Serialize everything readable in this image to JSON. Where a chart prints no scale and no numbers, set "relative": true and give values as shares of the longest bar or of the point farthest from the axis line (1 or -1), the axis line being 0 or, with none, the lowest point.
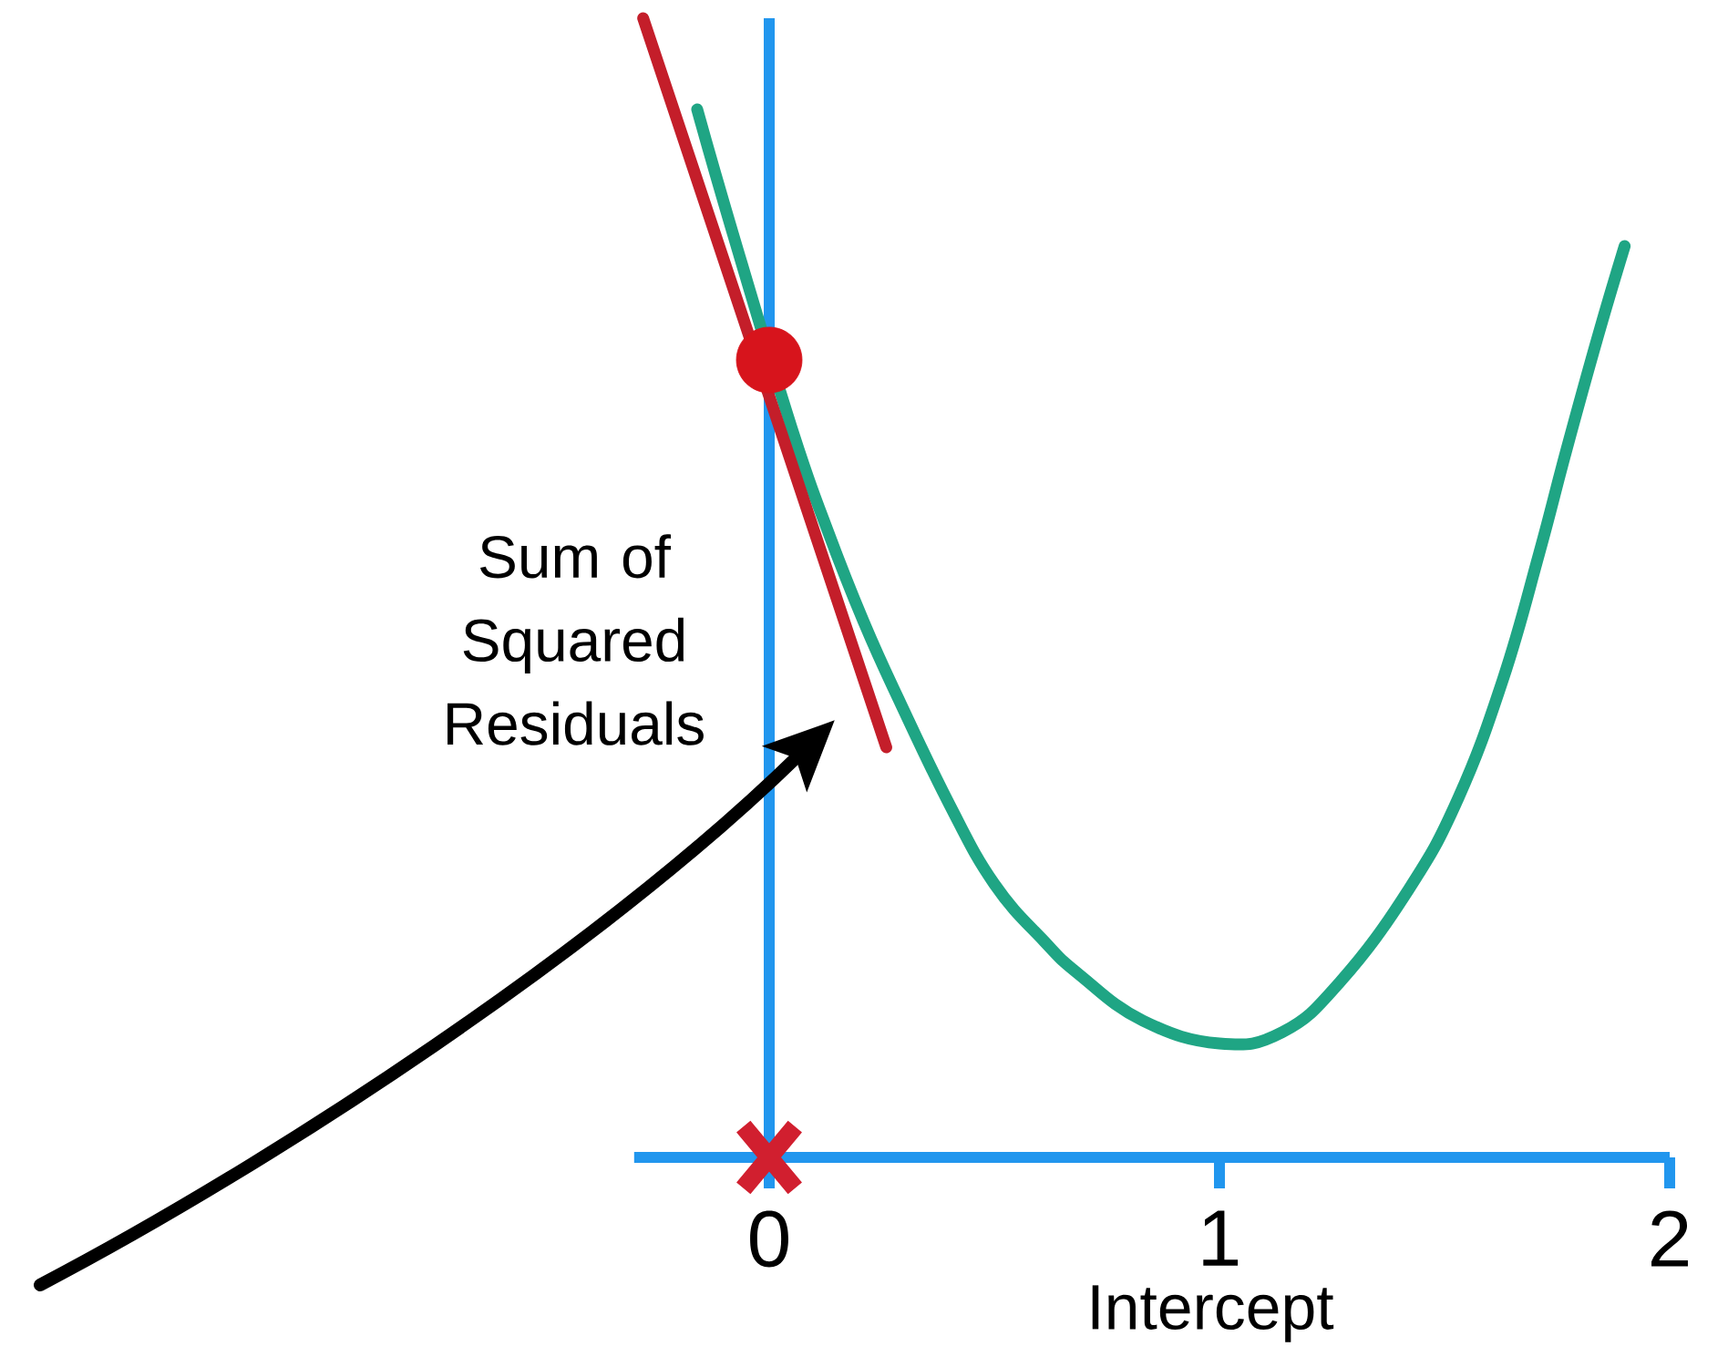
{
  "chart_data": {
    "type": "line",
    "xlabel": "Intercept",
    "ylabel": "Sum of Squared Residuals",
    "relative": true,
    "xlim": [
      -0.3,
      2
    ],
    "xticks": [
      0,
      1,
      2
    ],
    "ref_lines": [
      {
        "axis": "x",
        "value": 0,
        "color": "#2196ee"
      }
    ],
    "series": [
      {
        "color": "#1fa584",
        "x": [
          -0.16,
          -0.08,
          0.05,
          0.13,
          0.21,
          0.29,
          0.4,
          0.5,
          0.61,
          0.69,
          0.83,
          1.0,
          1.14,
          1.27,
          1.42,
          1.53,
          1.63,
          1.71,
          1.77,
          1.84,
          1.9
        ],
        "values": [
          0.92,
          0.81,
          0.64,
          0.55,
          0.47,
          0.4,
          0.31,
          0.24,
          0.19,
          0.16,
          0.12,
          0.1,
          0.11,
          0.155,
          0.235,
          0.315,
          0.42,
          0.53,
          0.62,
          0.72,
          0.8
        ]
      },
      {
        "color": "#c41e2a",
        "x": [
          -0.28,
          0.26
        ],
        "values": [
          1.0,
          0.36
        ]
      },
      {
        "type": "scatter",
        "color": "#d7141c",
        "marker": "circle",
        "x": [
          0
        ],
        "values": [
          0.7
        ]
      },
      {
        "type": "scatter",
        "color": "#d11f2f",
        "marker": "cross",
        "x": [
          0
        ],
        "values": [
          0
        ]
      }
    ]
  }
}
